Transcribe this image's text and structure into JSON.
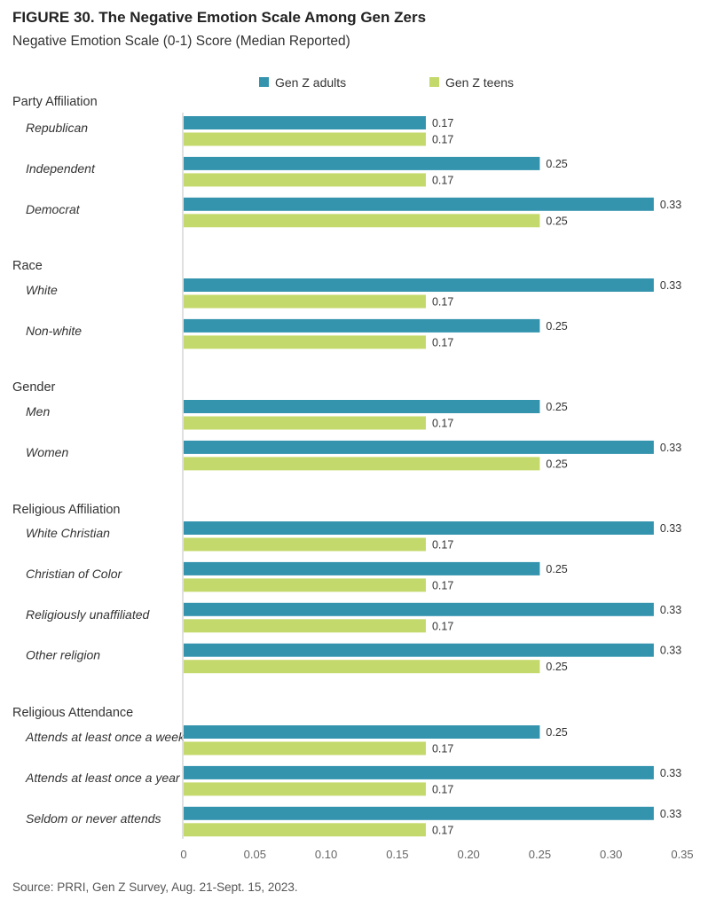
{
  "header": {
    "title": "FIGURE 30. The Negative Emotion Scale Among Gen Zers",
    "subtitle": "Negative Emotion Scale  (0-1) Score (Median Reported)"
  },
  "source": "Source: PRRI, Gen Z Survey, Aug. 21-Sept. 15, 2023.",
  "chart_data": {
    "type": "bar",
    "orientation": "horizontal",
    "title": "FIGURE 30. The Negative Emotion Scale Among Gen Zers",
    "subtitle": "Negative Emotion Scale  (0-1) Score (Median Reported)",
    "xlim": [
      0,
      0.35
    ],
    "xticks": [
      "0",
      "0.05",
      "0.10",
      "0.15",
      "0.20",
      "0.25",
      "0.30",
      "0.35"
    ],
    "legend_position": "top",
    "series": [
      {
        "name": "Gen Z adults",
        "color": "#3494ae"
      },
      {
        "name": "Gen Z teens",
        "color": "#c4d96b"
      }
    ],
    "groups": [
      {
        "name": "Party Affiliation",
        "categories": [
          {
            "label": "Republican",
            "values": [
              0.17,
              0.17
            ]
          },
          {
            "label": "Independent",
            "values": [
              0.25,
              0.17
            ]
          },
          {
            "label": "Democrat",
            "values": [
              0.33,
              0.25
            ]
          }
        ]
      },
      {
        "name": "Race",
        "categories": [
          {
            "label": "White",
            "values": [
              0.33,
              0.17
            ]
          },
          {
            "label": "Non-white",
            "values": [
              0.25,
              0.17
            ]
          }
        ]
      },
      {
        "name": "Gender",
        "categories": [
          {
            "label": "Men",
            "values": [
              0.25,
              0.17
            ]
          },
          {
            "label": "Women",
            "values": [
              0.33,
              0.25
            ]
          }
        ]
      },
      {
        "name": "Religious Affiliation",
        "categories": [
          {
            "label": "White Christian",
            "values": [
              0.33,
              0.17
            ]
          },
          {
            "label": "Christian of Color",
            "values": [
              0.25,
              0.17
            ]
          },
          {
            "label": "Religiously unaffiliated",
            "values": [
              0.33,
              0.17
            ]
          },
          {
            "label": "Other religion",
            "values": [
              0.33,
              0.25
            ]
          }
        ]
      },
      {
        "name": "Religious Attendance",
        "categories": [
          {
            "label": "Attends at least once a week",
            "values": [
              0.25,
              0.17
            ]
          },
          {
            "label": "Attends at least once a year",
            "values": [
              0.33,
              0.17
            ]
          },
          {
            "label": "Seldom or never attends",
            "values": [
              0.33,
              0.17
            ]
          }
        ]
      }
    ]
  }
}
